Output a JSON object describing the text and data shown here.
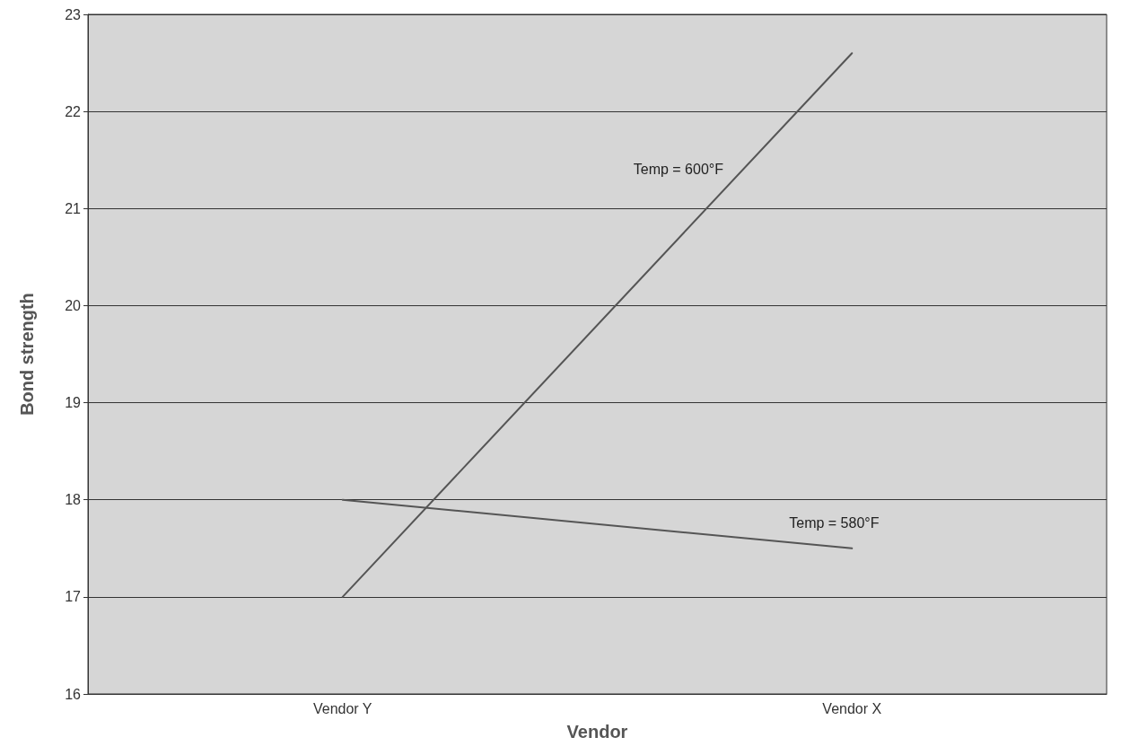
{
  "chart_data": {
    "type": "line",
    "xlabel": "Vendor",
    "ylabel": "Bond strength",
    "categories": [
      "Vendor Y",
      "Vendor X"
    ],
    "series": [
      {
        "name": "Temp = 600°F",
        "color": "#555555",
        "values": [
          17.0,
          22.6
        ]
      },
      {
        "name": "Temp = 580°F",
        "color": "#555555",
        "values": [
          18.0,
          17.5
        ]
      }
    ],
    "ylim": [
      16,
      23
    ],
    "yticks": [
      16,
      17,
      18,
      19,
      20,
      21,
      22,
      23
    ],
    "grid": "y",
    "legend": false,
    "marker": "none",
    "line_style": "solid"
  }
}
